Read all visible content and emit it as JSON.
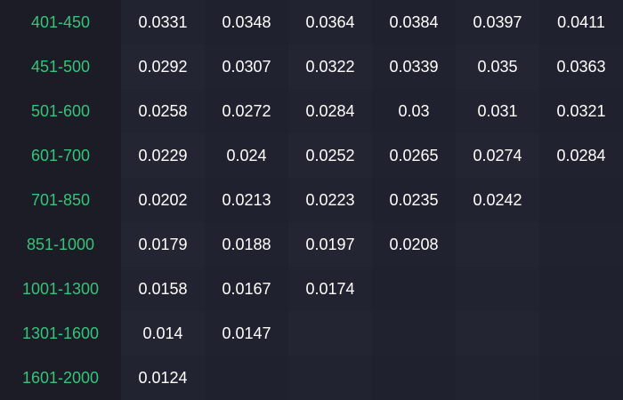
{
  "rows": [
    {
      "range": "401-450",
      "values": [
        "0.0331",
        "0.0348",
        "0.0364",
        "0.0384",
        "0.0397",
        "0.0411"
      ]
    },
    {
      "range": "451-500",
      "values": [
        "0.0292",
        "0.0307",
        "0.0322",
        "0.0339",
        "0.035",
        "0.0363"
      ]
    },
    {
      "range": "501-600",
      "values": [
        "0.0258",
        "0.0272",
        "0.0284",
        "0.03",
        "0.031",
        "0.0321"
      ]
    },
    {
      "range": "601-700",
      "values": [
        "0.0229",
        "0.024",
        "0.0252",
        "0.0265",
        "0.0274",
        "0.0284"
      ]
    },
    {
      "range": "701-850",
      "values": [
        "0.0202",
        "0.0213",
        "0.0223",
        "0.0235",
        "0.0242",
        ""
      ]
    },
    {
      "range": "851-1000",
      "values": [
        "0.0179",
        "0.0188",
        "0.0197",
        "0.0208",
        "",
        ""
      ]
    },
    {
      "range": "1001-1300",
      "values": [
        "0.0158",
        "0.0167",
        "0.0174",
        "",
        "",
        ""
      ]
    },
    {
      "range": "1301-1600",
      "values": [
        "0.014",
        "0.0147",
        "",
        "",
        "",
        ""
      ]
    },
    {
      "range": "1601-2000",
      "values": [
        "0.0124",
        "",
        "",
        "",
        "",
        ""
      ]
    }
  ],
  "colors": {
    "label": "#37c37a",
    "value": "#ffffff",
    "background": "#1b1c26"
  }
}
